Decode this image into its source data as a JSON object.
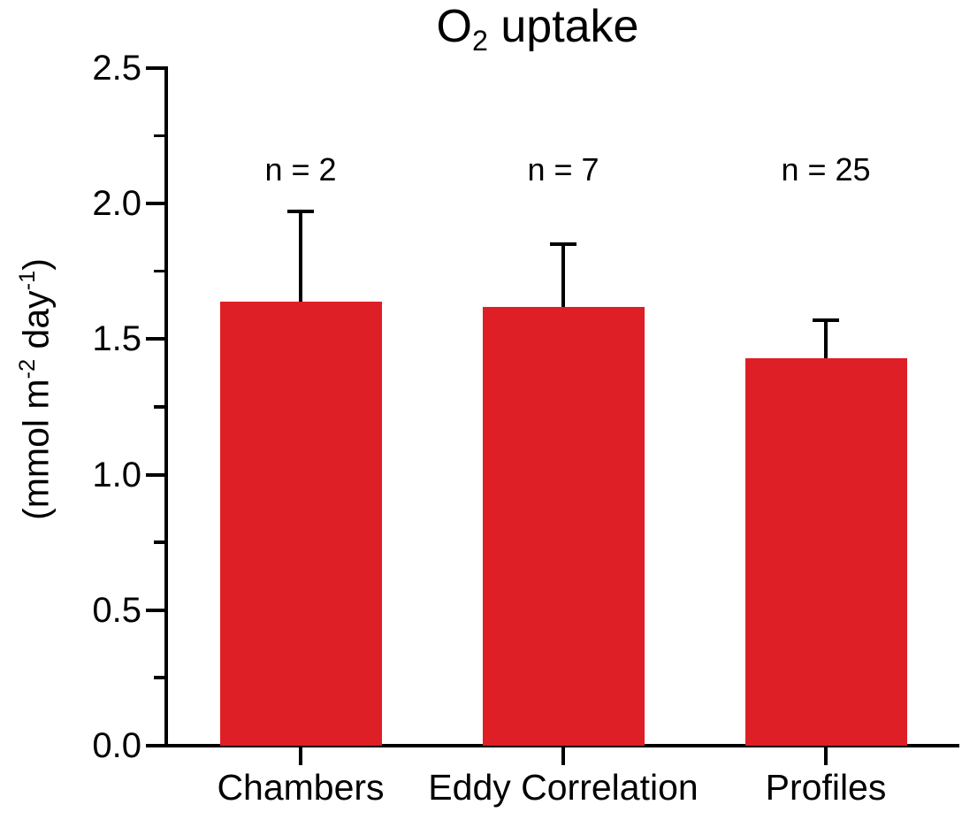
{
  "chart_data": {
    "type": "bar",
    "title": {
      "prefix": "O",
      "sub": "2",
      "suffix": " uptake"
    },
    "title_plain": "O2 uptake",
    "ylabel": {
      "p1": "(mmol m",
      "s1": "-2",
      "p2": " day",
      "s2": "-1",
      "p3": ")"
    },
    "ylabel_plain": "(mmol m^-2 day^-1)",
    "xlabel": "",
    "ylim": [
      0.0,
      2.5
    ],
    "ytick_values": [
      0.0,
      0.5,
      1.0,
      1.5,
      2.0,
      2.5
    ],
    "ytick_labels": [
      "0.0",
      "0.5",
      "1.0",
      "1.5",
      "2.0",
      "2.5"
    ],
    "yminor_values": [
      0.25,
      0.75,
      1.25,
      1.75,
      2.25
    ],
    "categories": [
      "Chambers",
      "Eddy Correlation",
      "Profiles"
    ],
    "series": [
      {
        "name": "O2 uptake",
        "values": [
          1.64,
          1.62,
          1.43
        ],
        "errors_upper": [
          0.33,
          0.23,
          0.14
        ]
      }
    ],
    "annotations": [
      "n = 2",
      "n = 7",
      "n = 25"
    ],
    "bar_color": "#DE1F26",
    "error_color": "#000000",
    "axis_color": "#000000",
    "background_color": "#FFFFFF",
    "grid": false,
    "legend": "none"
  }
}
